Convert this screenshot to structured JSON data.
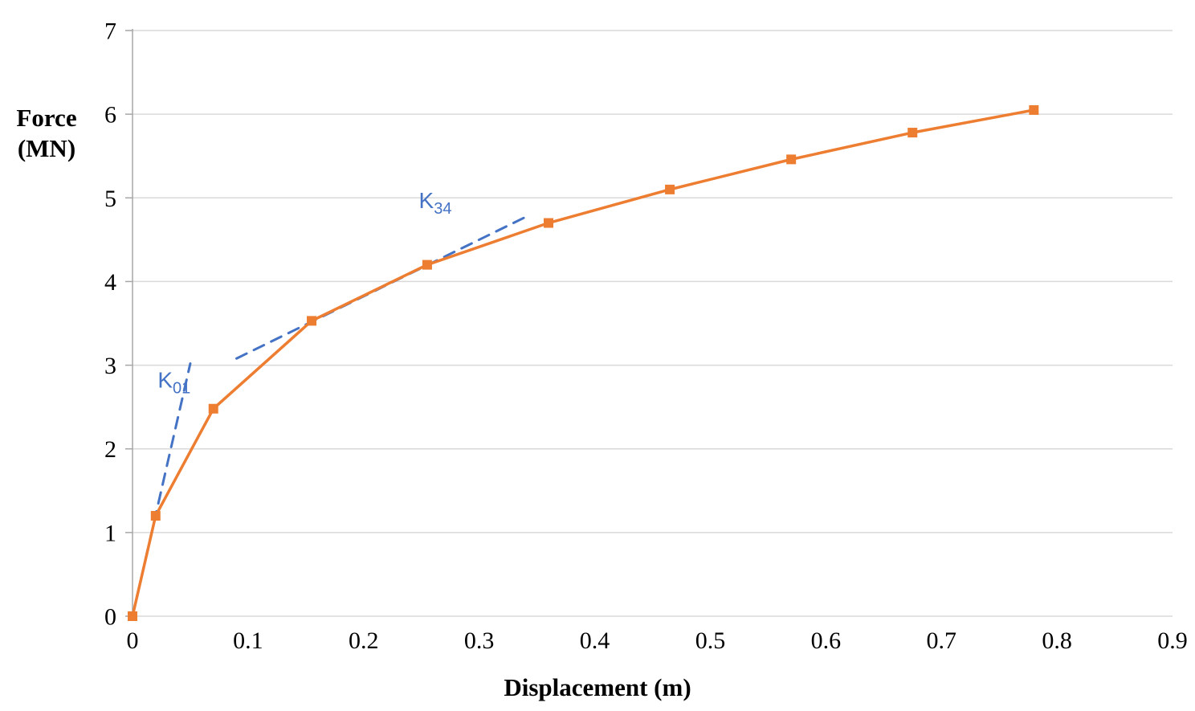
{
  "chart_data": {
    "type": "line",
    "title": "",
    "xlabel": "Displacement (m)",
    "ylabel_lines": [
      "Force",
      "(MN)"
    ],
    "xlim": [
      0,
      0.9
    ],
    "ylim": [
      0,
      7
    ],
    "x_ticks": [
      0,
      0.1,
      0.2,
      0.3,
      0.4,
      0.5,
      0.6,
      0.7,
      0.8,
      0.9
    ],
    "x_tick_labels": [
      "0",
      "0.1",
      "0.2",
      "0.3",
      "0.4",
      "0.5",
      "0.6",
      "0.7",
      "0.8",
      "0.9"
    ],
    "y_ticks": [
      0,
      1,
      2,
      3,
      4,
      5,
      6,
      7
    ],
    "y_tick_labels": [
      "0",
      "1",
      "2",
      "3",
      "4",
      "5",
      "6",
      "7"
    ],
    "grid": "horizontal",
    "legend": "none",
    "series": [
      {
        "name": "force-displacement-curve",
        "color": "#ED7D31",
        "marker": "square",
        "points": [
          [
            0,
            0
          ],
          [
            0.02,
            1.2
          ],
          [
            0.07,
            2.48
          ],
          [
            0.155,
            3.53
          ],
          [
            0.255,
            4.2
          ],
          [
            0.36,
            4.7
          ],
          [
            0.465,
            5.1
          ],
          [
            0.57,
            5.46
          ],
          [
            0.675,
            5.78
          ],
          [
            0.78,
            6.05
          ]
        ]
      }
    ],
    "annotations": [
      {
        "name": "k01",
        "type": "dashed-line",
        "color": "#4472C4",
        "from": [
          0,
          0
        ],
        "to": [
          0.05,
          3.02
        ],
        "label": {
          "main": "K",
          "sub": "01",
          "x": 0.036,
          "y": 2.73
        }
      },
      {
        "name": "k34",
        "type": "dashed-line",
        "color": "#4472C4",
        "from": [
          0.09,
          3.08
        ],
        "to": [
          0.34,
          4.77
        ],
        "label": {
          "main": "K",
          "sub": "34",
          "x": 0.262,
          "y": 4.88
        }
      }
    ],
    "colors": {
      "grid": "#d9d9d9",
      "axis": "#a6a6a6",
      "text": "#000000"
    }
  }
}
